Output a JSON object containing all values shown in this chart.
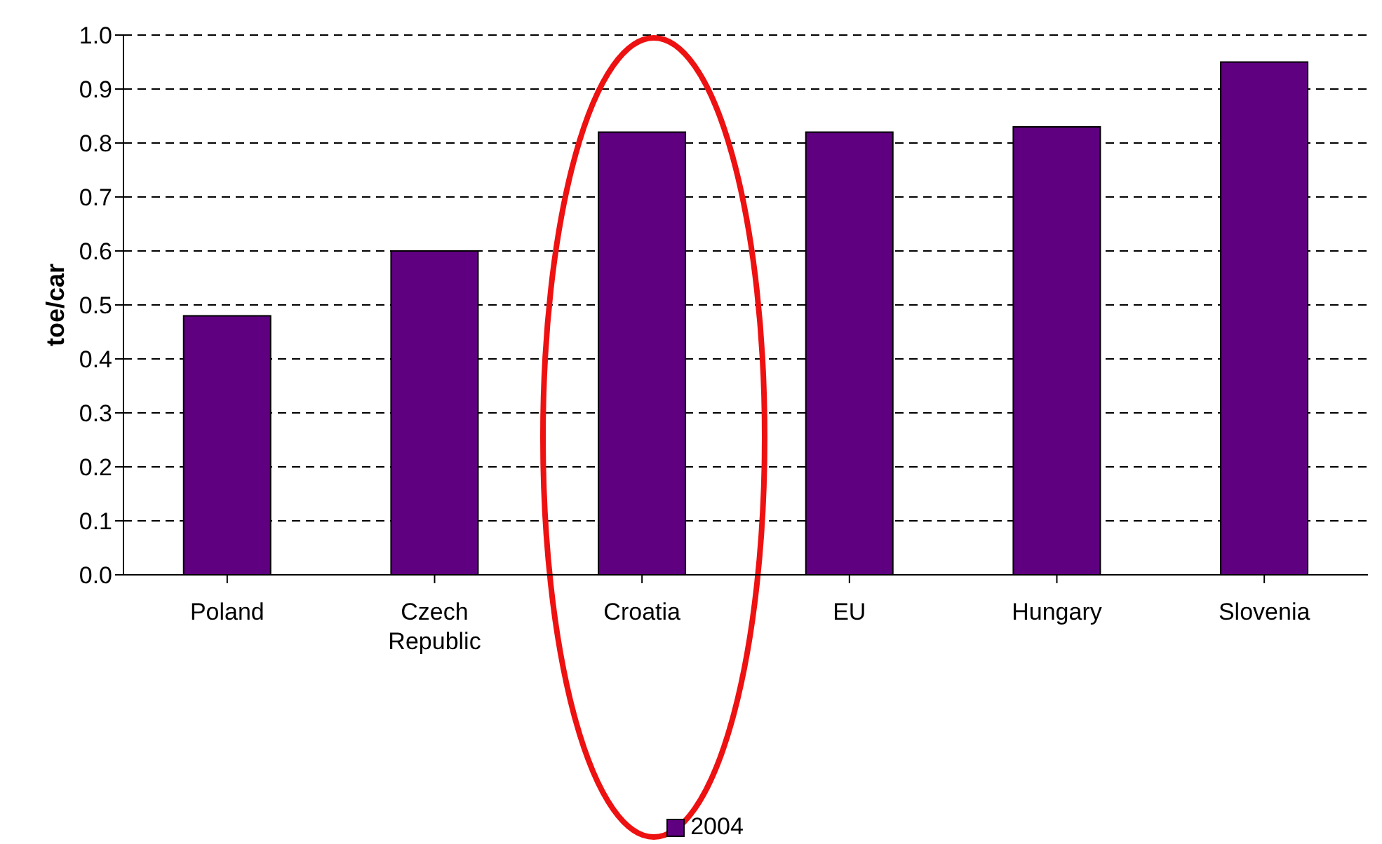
{
  "chart_data": {
    "type": "bar",
    "ylabel": "toe/car",
    "categories": [
      "Poland",
      "Czech Republic",
      "Croatia",
      "EU",
      "Hungary",
      "Slovenia"
    ],
    "series": [
      {
        "name": "2004",
        "color": "#5f0080",
        "values": [
          0.48,
          0.6,
          0.82,
          0.82,
          0.83,
          0.95
        ]
      }
    ],
    "ylim": [
      0,
      1
    ],
    "yticks": [
      {
        "value": 0,
        "label": "0.0"
      },
      0.1,
      0.2,
      0.3,
      0.4,
      0.5,
      0.6,
      0.7,
      0.8,
      0.9,
      {
        "value": 1,
        "label": "1.0"
      }
    ],
    "grid": "y",
    "legend": "bottom"
  }
}
